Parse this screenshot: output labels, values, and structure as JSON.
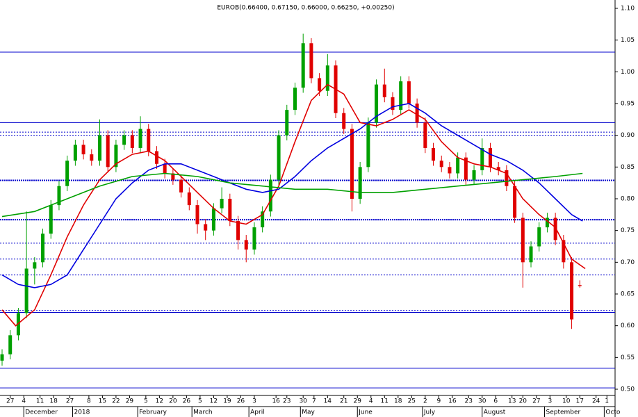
{
  "chart_data": {
    "type": "candlestick",
    "title": "EUROB(0.66400, 0.67150, 0.66000, 0.66250, +0.00250)",
    "xlim": [
      0,
      226
    ],
    "ylim": [
      0.5,
      1.1
    ],
    "yticks": [
      {
        "value": 1.1,
        "label": "1.10"
      },
      1.05,
      {
        "value": 1.0,
        "label": "1.00"
      },
      0.95,
      {
        "value": 0.9,
        "label": "0.90"
      },
      0.85,
      {
        "value": 0.8,
        "label": "0.80"
      },
      0.75,
      {
        "value": 0.7,
        "label": "0.70"
      },
      0.65,
      {
        "value": 0.6,
        "label": "0.60"
      },
      0.55,
      {
        "value": 0.5,
        "label": "0.50"
      }
    ],
    "xticks": [
      {
        "value": 3,
        "label": "27"
      },
      {
        "value": 8,
        "label": "4"
      },
      {
        "value": 14,
        "label": "11"
      },
      {
        "value": 19,
        "label": "18"
      },
      {
        "value": 25,
        "label": "27"
      },
      {
        "value": 32,
        "label": "8"
      },
      {
        "value": 37,
        "label": "15"
      },
      {
        "value": 42,
        "label": "22"
      },
      {
        "value": 47,
        "label": "29"
      },
      {
        "value": 53,
        "label": "5"
      },
      {
        "value": 58,
        "label": "12"
      },
      {
        "value": 63,
        "label": "20"
      },
      {
        "value": 68,
        "label": "26"
      },
      {
        "value": 73,
        "label": "5"
      },
      {
        "value": 78,
        "label": "12"
      },
      {
        "value": 83,
        "label": "19"
      },
      {
        "value": 88,
        "label": "26"
      },
      {
        "value": 93,
        "label": "3"
      },
      {
        "value": 101,
        "label": "16"
      },
      {
        "value": 105,
        "label": "23"
      },
      {
        "value": 111,
        "label": "30"
      },
      {
        "value": 115,
        "label": "7"
      },
      {
        "value": 120,
        "label": "14"
      },
      {
        "value": 126,
        "label": "21"
      },
      {
        "value": 131,
        "label": "29"
      },
      {
        "value": 136,
        "label": "4"
      },
      {
        "value": 141,
        "label": "11"
      },
      {
        "value": 146,
        "label": "18"
      },
      {
        "value": 151,
        "label": "25"
      },
      {
        "value": 156,
        "label": "2"
      },
      {
        "value": 161,
        "label": "9"
      },
      {
        "value": 166,
        "label": "16"
      },
      {
        "value": 172,
        "label": "23"
      },
      {
        "value": 177,
        "label": "30"
      },
      {
        "value": 182,
        "label": "6"
      },
      {
        "value": 188,
        "label": "13"
      },
      {
        "value": 192,
        "label": "20"
      },
      {
        "value": 197,
        "label": "27"
      },
      {
        "value": 202,
        "label": "3"
      },
      {
        "value": 208,
        "label": "10"
      },
      {
        "value": 213,
        "label": "17"
      },
      {
        "value": 219,
        "label": "24"
      },
      {
        "value": 223,
        "label": "1"
      }
    ],
    "months": [
      {
        "value": 8,
        "label": "December"
      },
      {
        "value": 26,
        "label": "2018"
      },
      {
        "value": 50,
        "label": "February"
      },
      {
        "value": 70,
        "label": "March"
      },
      {
        "value": 91,
        "label": "April"
      },
      {
        "value": 110,
        "label": "May"
      },
      {
        "value": 131,
        "label": "June"
      },
      {
        "value": 155,
        "label": "July"
      },
      {
        "value": 177,
        "label": "August"
      },
      {
        "value": 200,
        "label": "September"
      },
      {
        "value": 222,
        "label": "Octo"
      }
    ],
    "up_color": "#00a000",
    "down_color": "#e00000",
    "x": [
      0,
      3,
      6,
      9,
      12,
      15,
      18,
      21,
      24,
      27,
      30,
      33,
      36,
      39,
      42,
      45,
      48,
      51,
      54,
      57,
      60,
      63,
      66,
      69,
      72,
      75,
      78,
      81,
      84,
      87,
      90,
      93,
      96,
      99,
      102,
      105,
      108,
      111,
      114,
      117,
      120,
      123,
      126,
      129,
      132,
      135,
      138,
      141,
      144,
      147,
      150,
      153,
      156,
      159,
      162,
      165,
      168,
      171,
      174,
      177,
      180,
      183,
      186,
      189,
      192,
      195,
      198,
      201,
      204,
      207,
      210,
      213
    ],
    "open": [
      0.545,
      0.555,
      0.585,
      0.62,
      0.69,
      0.7,
      0.745,
      0.79,
      0.82,
      0.86,
      0.885,
      0.87,
      0.86,
      0.9,
      0.85,
      0.885,
      0.9,
      0.88,
      0.91,
      0.875,
      0.855,
      0.84,
      0.83,
      0.81,
      0.79,
      0.76,
      0.75,
      0.785,
      0.8,
      0.765,
      0.735,
      0.72,
      0.755,
      0.78,
      0.83,
      0.9,
      0.94,
      0.975,
      1.045,
      0.99,
      0.97,
      1.01,
      0.935,
      0.91,
      0.8,
      0.85,
      0.92,
      0.98,
      0.96,
      0.94,
      0.985,
      0.95,
      0.92,
      0.88,
      0.86,
      0.85,
      0.84,
      0.865,
      0.83,
      0.845,
      0.88,
      0.85,
      0.845,
      0.82,
      0.77,
      0.7,
      0.725,
      0.755,
      0.77,
      0.735,
      0.7,
      0.664
    ],
    "high": [
      0.563,
      0.593,
      0.628,
      0.78,
      0.708,
      0.753,
      0.798,
      0.828,
      0.868,
      0.893,
      0.893,
      0.878,
      0.925,
      0.908,
      0.893,
      0.908,
      0.908,
      0.93,
      0.918,
      0.883,
      0.863,
      0.848,
      0.838,
      0.818,
      0.798,
      0.768,
      0.793,
      0.818,
      0.808,
      0.773,
      0.743,
      0.763,
      0.788,
      0.838,
      0.908,
      0.948,
      0.983,
      1.06,
      1.053,
      0.998,
      1.028,
      1.018,
      0.943,
      0.918,
      0.858,
      0.928,
      0.988,
      1.005,
      0.968,
      0.993,
      0.993,
      0.958,
      0.928,
      0.888,
      0.868,
      0.858,
      0.873,
      0.873,
      0.853,
      0.895,
      0.888,
      0.858,
      0.853,
      0.828,
      0.778,
      0.733,
      0.763,
      0.778,
      0.778,
      0.743,
      0.708,
      0.6715
    ],
    "low": [
      0.537,
      0.547,
      0.577,
      0.612,
      0.665,
      0.692,
      0.737,
      0.782,
      0.812,
      0.852,
      0.862,
      0.852,
      0.852,
      0.842,
      0.842,
      0.877,
      0.872,
      0.872,
      0.867,
      0.847,
      0.832,
      0.822,
      0.802,
      0.782,
      0.745,
      0.735,
      0.742,
      0.777,
      0.757,
      0.72,
      0.7,
      0.712,
      0.747,
      0.772,
      0.822,
      0.892,
      0.932,
      0.967,
      0.982,
      0.962,
      0.962,
      0.927,
      0.902,
      0.78,
      0.792,
      0.842,
      0.912,
      0.952,
      0.932,
      0.932,
      0.942,
      0.912,
      0.872,
      0.852,
      0.842,
      0.832,
      0.832,
      0.822,
      0.822,
      0.837,
      0.842,
      0.837,
      0.812,
      0.762,
      0.66,
      0.692,
      0.717,
      0.747,
      0.727,
      0.69,
      0.595,
      0.66
    ],
    "close": [
      0.555,
      0.585,
      0.62,
      0.69,
      0.7,
      0.745,
      0.79,
      0.82,
      0.86,
      0.885,
      0.87,
      0.86,
      0.9,
      0.85,
      0.885,
      0.9,
      0.88,
      0.91,
      0.875,
      0.855,
      0.84,
      0.83,
      0.81,
      0.79,
      0.76,
      0.75,
      0.785,
      0.8,
      0.765,
      0.735,
      0.72,
      0.755,
      0.78,
      0.83,
      0.9,
      0.94,
      0.975,
      1.045,
      0.99,
      0.97,
      1.01,
      0.935,
      0.91,
      0.8,
      0.85,
      0.92,
      0.98,
      0.96,
      0.94,
      0.985,
      0.95,
      0.92,
      0.88,
      0.86,
      0.85,
      0.84,
      0.865,
      0.83,
      0.845,
      0.88,
      0.85,
      0.845,
      0.82,
      0.77,
      0.7,
      0.725,
      0.755,
      0.77,
      0.735,
      0.7,
      0.61,
      0.6625
    ],
    "lines": [
      {
        "color": "#e00000",
        "x": [
          0,
          5,
          12,
          18,
          24,
          30,
          36,
          42,
          48,
          54,
          60,
          66,
          72,
          78,
          84,
          90,
          96,
          102,
          108,
          114,
          120,
          126,
          132,
          138,
          144,
          150,
          156,
          162,
          168,
          174,
          180,
          186,
          192,
          198,
          204,
          210,
          215
        ],
        "values": [
          0.625,
          0.6,
          0.625,
          0.68,
          0.74,
          0.79,
          0.83,
          0.855,
          0.87,
          0.875,
          0.86,
          0.835,
          0.81,
          0.785,
          0.765,
          0.76,
          0.775,
          0.82,
          0.89,
          0.955,
          0.98,
          0.965,
          0.92,
          0.915,
          0.925,
          0.94,
          0.925,
          0.89,
          0.865,
          0.855,
          0.85,
          0.84,
          0.8,
          0.775,
          0.755,
          0.705,
          0.69
        ]
      },
      {
        "color": "#0000e0",
        "x": [
          0,
          6,
          12,
          18,
          24,
          30,
          36,
          42,
          48,
          54,
          60,
          66,
          72,
          78,
          84,
          90,
          96,
          102,
          108,
          114,
          120,
          126,
          132,
          138,
          144,
          150,
          156,
          162,
          168,
          174,
          180,
          186,
          192,
          198,
          204,
          210,
          214
        ],
        "values": [
          0.68,
          0.665,
          0.66,
          0.665,
          0.68,
          0.72,
          0.76,
          0.8,
          0.825,
          0.845,
          0.855,
          0.855,
          0.845,
          0.835,
          0.825,
          0.815,
          0.81,
          0.815,
          0.835,
          0.86,
          0.88,
          0.895,
          0.91,
          0.93,
          0.945,
          0.95,
          0.935,
          0.915,
          0.9,
          0.885,
          0.87,
          0.86,
          0.845,
          0.825,
          0.8,
          0.775,
          0.765
        ]
      },
      {
        "color": "#00a000",
        "x": [
          0,
          12,
          24,
          36,
          48,
          60,
          72,
          84,
          96,
          108,
          120,
          132,
          144,
          156,
          168,
          180,
          192,
          204,
          214
        ],
        "values": [
          0.772,
          0.78,
          0.8,
          0.82,
          0.835,
          0.84,
          0.835,
          0.825,
          0.82,
          0.815,
          0.815,
          0.81,
          0.81,
          0.815,
          0.82,
          0.825,
          0.83,
          0.835,
          0.84
        ]
      }
    ],
    "hline_color": "#0000cc",
    "hlines": [
      {
        "value": 1.031,
        "style": "solid"
      },
      {
        "value": 0.92,
        "style": "solid"
      },
      {
        "value": 0.905,
        "style": "dotted"
      },
      {
        "value": 0.9,
        "style": "dotted"
      },
      {
        "value": 0.829,
        "style": "bold"
      },
      {
        "value": 0.767,
        "style": "bold"
      },
      {
        "value": 0.73,
        "style": "dotted"
      },
      {
        "value": 0.705,
        "style": "dotted"
      },
      {
        "value": 0.68,
        "style": "dotted"
      },
      {
        "value": 0.624,
        "style": "dotted"
      },
      {
        "value": 0.621,
        "style": "solid"
      },
      {
        "value": 0.533,
        "style": "solid"
      },
      {
        "value": 0.502,
        "style": "solid"
      }
    ]
  }
}
